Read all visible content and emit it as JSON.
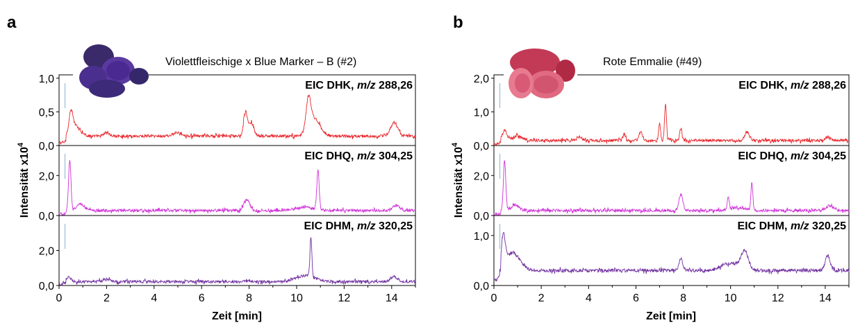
{
  "chart_data": [
    {
      "type": "line",
      "panel_letter": "a",
      "title": "Violettfleischige x Blue Marker – B (#2)",
      "photo": "purple-potato-photo",
      "xlabel": "Zeit [min]",
      "ylabel_main": "Intensität x10",
      "ylabel_exp": "4",
      "xlim": [
        0,
        15
      ],
      "xticks": [
        "0",
        "2",
        "4",
        "6",
        "8",
        "10",
        "12",
        "14"
      ],
      "series": [
        {
          "name": "EIC DHK",
          "mz_prefix": "m/z",
          "mz_value": "288,26",
          "color": "#e8262b",
          "ylim": [
            0,
            1.05
          ],
          "yticks": [
            "0,0",
            "0,5",
            "1,0"
          ],
          "baseline": 0.14,
          "noise": 0.06,
          "peaks": [
            [
              0.5,
              0.3,
              0.08
            ],
            [
              0.7,
              0.15,
              0.2
            ],
            [
              2.0,
              0.06,
              0.1
            ],
            [
              5.0,
              0.05,
              0.2
            ],
            [
              7.85,
              0.35,
              0.08
            ],
            [
              8.1,
              0.2,
              0.1
            ],
            [
              10.5,
              0.45,
              0.1
            ],
            [
              10.75,
              0.25,
              0.25
            ],
            [
              14.1,
              0.2,
              0.15
            ]
          ]
        },
        {
          "name": "EIC DHQ",
          "mz_prefix": "m/z",
          "mz_value": "304,25",
          "color": "#d030d8",
          "ylim": [
            0,
            3.5
          ],
          "yticks": [
            "0,0",
            "2,0"
          ],
          "baseline": 0.25,
          "noise": 0.06,
          "peaks": [
            [
              0.45,
              2.5,
              0.05
            ],
            [
              0.9,
              0.35,
              0.15
            ],
            [
              7.9,
              0.55,
              0.12
            ],
            [
              10.9,
              2.0,
              0.05
            ],
            [
              10.3,
              0.15,
              0.4
            ],
            [
              14.2,
              0.25,
              0.15
            ]
          ]
        },
        {
          "name": "EIC DHM",
          "mz_prefix": "m/z",
          "mz_value": "320,25",
          "color": "#7030a0",
          "ylim": [
            0,
            4.0
          ],
          "yticks": [
            "0,0",
            "2,0"
          ],
          "baseline": 0.22,
          "noise": 0.06,
          "peaks": [
            [
              0.4,
              0.25,
              0.1
            ],
            [
              2.0,
              0.1,
              0.2
            ],
            [
              7.9,
              0.1,
              0.1
            ],
            [
              10.6,
              2.3,
              0.04
            ],
            [
              10.4,
              0.35,
              0.4
            ],
            [
              14.1,
              0.3,
              0.15
            ]
          ]
        }
      ]
    },
    {
      "type": "line",
      "panel_letter": "b",
      "title": "Rote Emmalie (#49)",
      "photo": "red-potato-photo",
      "xlabel": "Zeit [min]",
      "ylabel_main": "Intensität x10",
      "ylabel_exp": "4",
      "xlim": [
        0,
        15
      ],
      "xticks": [
        "0",
        "2",
        "4",
        "6",
        "8",
        "10",
        "12",
        "14"
      ],
      "series": [
        {
          "name": "EIC DHK",
          "mz_prefix": "m/z",
          "mz_value": "288,26",
          "color": "#e8262b",
          "ylim": [
            0,
            2.1
          ],
          "yticks": [
            "0,0",
            "1,0",
            "2,0"
          ],
          "baseline": 0.15,
          "noise": 0.06,
          "peaks": [
            [
              0.45,
              0.3,
              0.1
            ],
            [
              1.0,
              0.15,
              0.2
            ],
            [
              3.6,
              0.1,
              0.1
            ],
            [
              5.5,
              0.2,
              0.05
            ],
            [
              6.2,
              0.25,
              0.08
            ],
            [
              7.0,
              0.5,
              0.04
            ],
            [
              7.25,
              1.1,
              0.04
            ],
            [
              7.9,
              0.35,
              0.05
            ],
            [
              10.7,
              0.25,
              0.1
            ],
            [
              14.1,
              0.1,
              0.1
            ]
          ]
        },
        {
          "name": "EIC DHQ",
          "mz_prefix": "m/z",
          "mz_value": "304,25",
          "color": "#d030d8",
          "ylim": [
            0,
            3.5
          ],
          "yticks": [
            "0,0",
            "2,0"
          ],
          "baseline": 0.25,
          "noise": 0.06,
          "peaks": [
            [
              0.45,
              2.5,
              0.05
            ],
            [
              0.9,
              0.3,
              0.15
            ],
            [
              7.9,
              0.8,
              0.08
            ],
            [
              9.9,
              0.6,
              0.04
            ],
            [
              10.9,
              1.4,
              0.04
            ],
            [
              10.3,
              0.15,
              0.3
            ],
            [
              14.2,
              0.25,
              0.15
            ]
          ]
        },
        {
          "name": "EIC DHM",
          "mz_prefix": "m/z",
          "mz_value": "320,25",
          "color": "#7030a0",
          "ylim": [
            0,
            1.4
          ],
          "yticks": [
            "0,0",
            "1,0"
          ],
          "baseline": 0.3,
          "noise": 0.07,
          "peaks": [
            [
              0.4,
              0.6,
              0.08
            ],
            [
              0.8,
              0.35,
              0.3
            ],
            [
              7.9,
              0.25,
              0.08
            ],
            [
              10.6,
              0.35,
              0.15
            ],
            [
              10.0,
              0.15,
              0.4
            ],
            [
              14.1,
              0.3,
              0.1
            ]
          ]
        }
      ]
    }
  ]
}
